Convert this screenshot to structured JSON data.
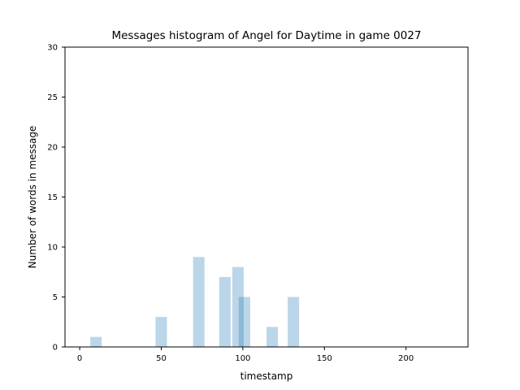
{
  "chart_data": {
    "type": "bar",
    "title": "Messages histogram of Angel for Daytime in game 0027",
    "xlabel": "timestamp",
    "ylabel": "Number of words in message",
    "xlim": [
      -9,
      238
    ],
    "ylim": [
      0,
      30
    ],
    "xticks": [
      0,
      50,
      100,
      150,
      200
    ],
    "yticks": [
      0,
      5,
      10,
      15,
      20,
      25,
      30
    ],
    "bar_width": 7,
    "bar_color": "#1f77b4",
    "bar_opacity": 0.3,
    "grid": false,
    "legend": "none",
    "bars": [
      {
        "x": 10,
        "value": 1
      },
      {
        "x": 50,
        "value": 3
      },
      {
        "x": 73,
        "value": 9
      },
      {
        "x": 89,
        "value": 7
      },
      {
        "x": 97,
        "value": 8
      },
      {
        "x": 101,
        "value": 5
      },
      {
        "x": 118,
        "value": 2
      },
      {
        "x": 131,
        "value": 5
      }
    ]
  }
}
